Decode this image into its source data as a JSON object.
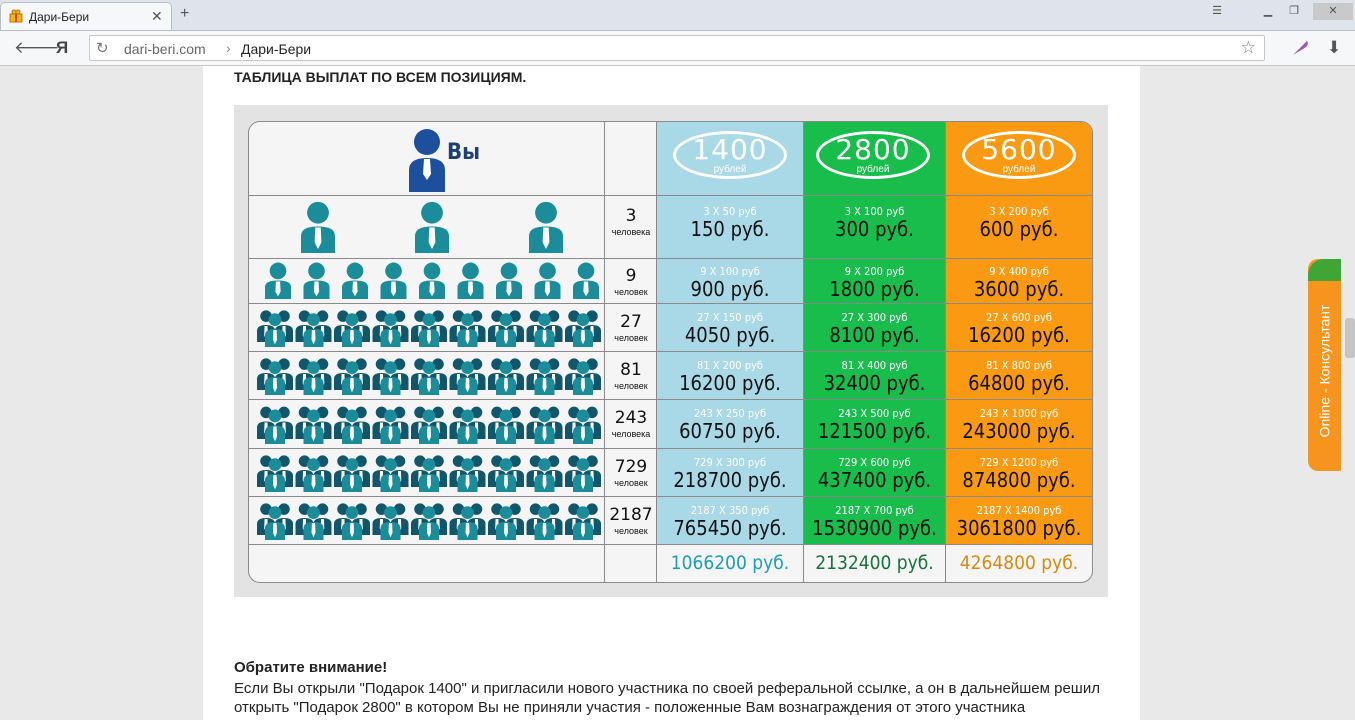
{
  "browser": {
    "tab_title": "Дари-Бери",
    "new_tab_icon": "plus-icon",
    "address_host": "dari-beri.com",
    "address_separator": "›",
    "address_title": "Дари-Бери",
    "yandex_logo": "Я"
  },
  "page": {
    "heading": "ТАБЛИЦА ВЫПЛАТ ПО ВСЕМ ПОЗИЦИЯМ.",
    "table": {
      "you_label": "Вы",
      "plans": [
        {
          "amount": "1400",
          "unit": "рублей",
          "color": "#a9d8e7",
          "total": "1066200 руб.",
          "total_color": "#1b9fb2"
        },
        {
          "amount": "2800",
          "unit": "рублей",
          "color": "#19bd4b",
          "total": "2132400 руб.",
          "total_color": "#16733a"
        },
        {
          "amount": "5600",
          "unit": "рублей",
          "color": "#fa9a13",
          "total": "4264800 руб.",
          "total_color": "#d98a10"
        }
      ],
      "rows": [
        {
          "count": "3",
          "label": "человека",
          "cells": [
            {
              "calc": "3 Х 50 руб",
              "sum": "150 руб."
            },
            {
              "calc": "3 Х 100 руб",
              "sum": "300 руб."
            },
            {
              "calc": "3 Х 200 руб",
              "sum": "600 руб."
            }
          ]
        },
        {
          "count": "9",
          "label": "человек",
          "cells": [
            {
              "calc": "9 Х 100 руб",
              "sum": "900 руб."
            },
            {
              "calc": "9 Х 200 руб",
              "sum": "1800 руб."
            },
            {
              "calc": "9 Х 400 руб",
              "sum": "3600 руб."
            }
          ]
        },
        {
          "count": "27",
          "label": "человек",
          "cells": [
            {
              "calc": "27 Х 150 руб",
              "sum": "4050 руб."
            },
            {
              "calc": "27 Х 300 руб",
              "sum": "8100 руб."
            },
            {
              "calc": "27 Х 600 руб",
              "sum": "16200 руб."
            }
          ]
        },
        {
          "count": "81",
          "label": "человек",
          "cells": [
            {
              "calc": "81 Х 200 руб",
              "sum": "16200 руб."
            },
            {
              "calc": "81 Х 400 руб",
              "sum": "32400 руб."
            },
            {
              "calc": "81 Х 800 руб",
              "sum": "64800 руб."
            }
          ]
        },
        {
          "count": "243",
          "label": "человека",
          "cells": [
            {
              "calc": "243 Х 250 руб",
              "sum": "60750 руб."
            },
            {
              "calc": "243 Х 500 руб",
              "sum": "121500 руб."
            },
            {
              "calc": "243 Х 1000 руб",
              "sum": "243000 руб."
            }
          ]
        },
        {
          "count": "729",
          "label": "человек",
          "cells": [
            {
              "calc": "729 Х 300 руб",
              "sum": "218700 руб."
            },
            {
              "calc": "729 Х 600 руб",
              "sum": "437400 руб."
            },
            {
              "calc": "729 Х 1200 руб",
              "sum": "874800 руб."
            }
          ]
        },
        {
          "count": "2187",
          "label": "человек",
          "cells": [
            {
              "calc": "2187 Х 350 руб",
              "sum": "765450 руб."
            },
            {
              "calc": "2187 Х 700 руб",
              "sum": "1530900 руб."
            },
            {
              "calc": "2187 Х 1400 руб",
              "sum": "3061800 руб."
            }
          ]
        }
      ]
    },
    "note_title": "Обратите внимание!",
    "note_text": "Если Вы открыли \"Подарок 1400\" и пригласили нового участника по своей реферальной ссылке, а он в дальнейшем решил открыть \"Подарок 2800\" в котором Вы не приняли участия - положенные Вам вознаграждения от этого участника"
  },
  "consultant": {
    "label": "Online - Консультант",
    "color": "#f7941e"
  },
  "colors": {
    "person_teal": "#1b8d9a",
    "person_dark": "#11566b",
    "person_you": "#1c4f9c"
  }
}
